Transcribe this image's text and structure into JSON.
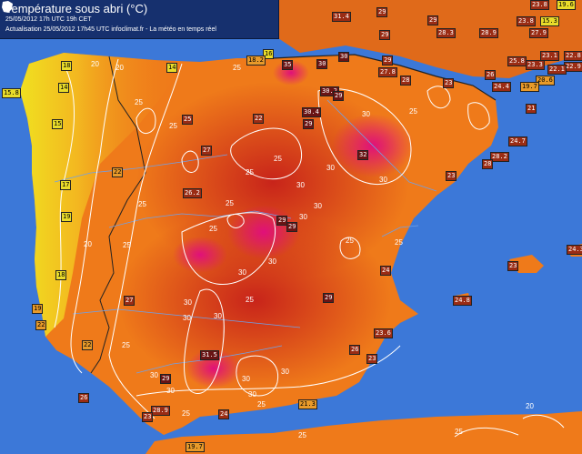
{
  "header": {
    "title": "Température sous abri (°C)",
    "line1": "25/05/2012  17h UTC  19h CET",
    "line2": "Actualisation 25/05/2012 17h45 UTC    infoclimat.fr - La météo en temps réel"
  },
  "stations": [
    {
      "v": "31.4"
    },
    {
      "v": "29"
    },
    {
      "v": "29"
    },
    {
      "v": "29"
    },
    {
      "v": "28.3"
    },
    {
      "v": "28.9"
    },
    {
      "v": "23.8"
    },
    {
      "v": "15.3"
    },
    {
      "v": "27.9"
    },
    {
      "v": "19.6"
    },
    {
      "v": "23.8"
    },
    {
      "v": "16"
    },
    {
      "v": "18.2"
    },
    {
      "v": "35"
    },
    {
      "v": "30"
    },
    {
      "v": "30"
    },
    {
      "v": "29"
    },
    {
      "v": "27.8"
    },
    {
      "v": "28"
    },
    {
      "v": "26"
    },
    {
      "v": "25.8"
    },
    {
      "v": "23.1"
    },
    {
      "v": "22.8"
    },
    {
      "v": "22.9"
    },
    {
      "v": "23.3"
    },
    {
      "v": "22.1"
    },
    {
      "v": "20.6"
    },
    {
      "v": "19.7"
    },
    {
      "v": "24.4"
    },
    {
      "v": "23"
    },
    {
      "v": "18"
    },
    {
      "v": "14"
    },
    {
      "v": "15.8"
    },
    {
      "v": "14"
    },
    {
      "v": "15"
    },
    {
      "v": "17"
    },
    {
      "v": "19"
    },
    {
      "v": "18"
    },
    {
      "v": "19"
    },
    {
      "v": "22"
    },
    {
      "v": "25"
    },
    {
      "v": "22"
    },
    {
      "v": "30.2"
    },
    {
      "v": "29"
    },
    {
      "v": "30.4"
    },
    {
      "v": "29"
    },
    {
      "v": "21"
    },
    {
      "v": "24.7"
    },
    {
      "v": "28.2"
    },
    {
      "v": "28"
    },
    {
      "v": "23"
    },
    {
      "v": "27"
    },
    {
      "v": "22"
    },
    {
      "v": "32"
    },
    {
      "v": "26.2"
    },
    {
      "v": "29"
    },
    {
      "v": "29"
    },
    {
      "v": "23"
    },
    {
      "v": "24.3"
    },
    {
      "v": "24"
    },
    {
      "v": "24.8"
    },
    {
      "v": "27"
    },
    {
      "v": "29"
    },
    {
      "v": "22"
    },
    {
      "v": "23.6"
    },
    {
      "v": "26"
    },
    {
      "v": "23"
    },
    {
      "v": "31.5"
    },
    {
      "v": "29"
    },
    {
      "v": "26"
    },
    {
      "v": "28.9"
    },
    {
      "v": "24"
    },
    {
      "v": "23"
    },
    {
      "v": "21.3"
    },
    {
      "v": "19.7"
    }
  ],
  "isolines": [
    {
      "t": "20"
    },
    {
      "t": "20"
    },
    {
      "t": "25"
    },
    {
      "t": "25"
    },
    {
      "t": "25"
    },
    {
      "t": "25"
    },
    {
      "t": "25"
    },
    {
      "t": "20"
    },
    {
      "t": "30"
    },
    {
      "t": "30"
    },
    {
      "t": "30"
    },
    {
      "t": "30"
    },
    {
      "t": "30"
    },
    {
      "t": "25"
    },
    {
      "t": "25"
    },
    {
      "t": "30"
    },
    {
      "t": "30"
    },
    {
      "t": "30"
    },
    {
      "t": "30"
    },
    {
      "t": "30"
    },
    {
      "t": "25"
    },
    {
      "t": "25"
    },
    {
      "t": "25"
    },
    {
      "t": "25"
    },
    {
      "t": "25"
    },
    {
      "t": "25"
    },
    {
      "t": "30"
    },
    {
      "t": "30"
    },
    {
      "t": "30"
    },
    {
      "t": "30"
    },
    {
      "t": "30"
    },
    {
      "t": "25"
    },
    {
      "t": "25"
    },
    {
      "t": "25"
    },
    {
      "t": "30"
    },
    {
      "t": "25"
    },
    {
      "t": "20"
    },
    {
      "t": "25"
    }
  ]
}
